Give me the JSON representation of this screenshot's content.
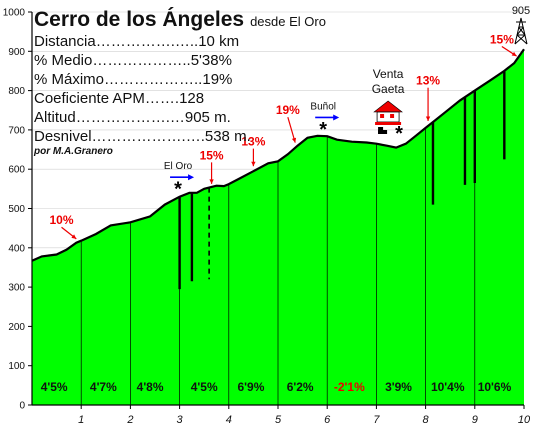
{
  "chart_data": {
    "type": "area",
    "title": "Cerro de los Ángeles",
    "subtitle": "desde El Oro",
    "stats": [
      {
        "label": "Distancia",
        "dots": "…………….…..",
        "value": "10 km"
      },
      {
        "label": "% Medio",
        "dots": "………………..",
        "value": "5'38%"
      },
      {
        "label": "% Máximo",
        "dots": "………………..",
        "value": "19%"
      },
      {
        "label": "Coeficiente APM",
        "dots": "…….",
        "value": "128"
      },
      {
        "label": "Altitud",
        "dots": "……………….…",
        "value": "905 m."
      },
      {
        "label": "Desnivel",
        "dots": "……………….….",
        "value": "538 m."
      }
    ],
    "author": "por M.A.Granero",
    "xlim": [
      0,
      10
    ],
    "ylim": [
      0,
      1000
    ],
    "x_ticks": [
      "1",
      "2",
      "3",
      "4",
      "5",
      "6",
      "7",
      "8",
      "9",
      "10"
    ],
    "y_ticks": [
      "0",
      "100",
      "200",
      "300",
      "400",
      "500",
      "600",
      "700",
      "800",
      "900",
      "1000"
    ],
    "profile": [
      {
        "x": 0.0,
        "y": 367
      },
      {
        "x": 0.2,
        "y": 378
      },
      {
        "x": 0.5,
        "y": 383
      },
      {
        "x": 0.7,
        "y": 395
      },
      {
        "x": 0.9,
        "y": 413
      },
      {
        "x": 1.0,
        "y": 418
      },
      {
        "x": 1.3,
        "y": 435
      },
      {
        "x": 1.6,
        "y": 457
      },
      {
        "x": 2.0,
        "y": 465
      },
      {
        "x": 2.4,
        "y": 480
      },
      {
        "x": 2.7,
        "y": 510
      },
      {
        "x": 3.0,
        "y": 530
      },
      {
        "x": 3.2,
        "y": 540
      },
      {
        "x": 3.35,
        "y": 540
      },
      {
        "x": 3.5,
        "y": 550
      },
      {
        "x": 3.75,
        "y": 558
      },
      {
        "x": 3.9,
        "y": 557
      },
      {
        "x": 4.0,
        "y": 562
      },
      {
        "x": 4.2,
        "y": 575
      },
      {
        "x": 4.5,
        "y": 595
      },
      {
        "x": 4.8,
        "y": 615
      },
      {
        "x": 5.0,
        "y": 620
      },
      {
        "x": 5.2,
        "y": 638
      },
      {
        "x": 5.4,
        "y": 660
      },
      {
        "x": 5.6,
        "y": 680
      },
      {
        "x": 5.8,
        "y": 685
      },
      {
        "x": 6.0,
        "y": 684
      },
      {
        "x": 6.2,
        "y": 675
      },
      {
        "x": 6.5,
        "y": 670
      },
      {
        "x": 6.8,
        "y": 668
      },
      {
        "x": 7.0,
        "y": 665
      },
      {
        "x": 7.2,
        "y": 660
      },
      {
        "x": 7.4,
        "y": 655
      },
      {
        "x": 7.6,
        "y": 665
      },
      {
        "x": 7.8,
        "y": 685
      },
      {
        "x": 8.0,
        "y": 705
      },
      {
        "x": 8.2,
        "y": 725
      },
      {
        "x": 8.4,
        "y": 745
      },
      {
        "x": 8.7,
        "y": 775
      },
      {
        "x": 9.0,
        "y": 800
      },
      {
        "x": 9.3,
        "y": 825
      },
      {
        "x": 9.6,
        "y": 850
      },
      {
        "x": 9.8,
        "y": 870
      },
      {
        "x": 10.0,
        "y": 905
      }
    ],
    "segments": [
      {
        "x_mid": 0.45,
        "grade": "4'5%"
      },
      {
        "x_mid": 1.45,
        "grade": "4'7%"
      },
      {
        "x_mid": 2.4,
        "grade": "4'8%"
      },
      {
        "x_mid": 3.5,
        "grade": "4'5%"
      },
      {
        "x_mid": 4.45,
        "grade": "6'9%"
      },
      {
        "x_mid": 5.45,
        "grade": "6'2%"
      },
      {
        "x_mid": 6.45,
        "grade": "-2'1%"
      },
      {
        "x_mid": 7.45,
        "grade": "3'9%"
      },
      {
        "x_mid": 8.45,
        "grade": "10'4%"
      },
      {
        "x_mid": 9.4,
        "grade": "10'6%"
      }
    ],
    "km_markers": [
      1,
      2,
      3,
      4,
      5,
      6,
      7,
      8,
      9
    ],
    "dark_lines": [
      {
        "x": 3.0,
        "y_bottom": 295
      },
      {
        "x": 3.25,
        "y_bottom": 315
      },
      {
        "x": 8.15,
        "y_bottom": 510
      },
      {
        "x": 8.8,
        "y_bottom": 560
      },
      {
        "x": 9.0,
        "y_bottom": 565
      },
      {
        "x": 9.6,
        "y_bottom": 625
      }
    ],
    "dashed_lines": [
      {
        "x": 3.6,
        "y_bottom": 320
      }
    ],
    "max_grades": [
      {
        "x": 0.6,
        "y": 460,
        "label": "10%",
        "arrow_to_x": 0.9,
        "arrow_to_y": 415
      },
      {
        "x": 3.65,
        "y": 625,
        "label": "15%",
        "arrow_to_x": 3.65,
        "arrow_to_y": 555
      },
      {
        "x": 4.5,
        "y": 660,
        "label": "13%",
        "arrow_to_x": 4.5,
        "arrow_to_y": 600
      },
      {
        "x": 5.2,
        "y": 740,
        "label": "19%",
        "arrow_to_x": 5.35,
        "arrow_to_y": 660
      },
      {
        "x": 8.05,
        "y": 815,
        "label": "13%",
        "arrow_to_x": 8.05,
        "arrow_to_y": 715
      },
      {
        "x": 9.55,
        "y": 920,
        "label": "15%",
        "arrow_to_x": 9.85,
        "arrow_to_y": 880
      }
    ],
    "places": [
      {
        "x": 3.05,
        "y": 600,
        "label": "El Oro",
        "arrow": true
      },
      {
        "x": 6.0,
        "y": 752,
        "label": "Buñol",
        "arrow": true
      }
    ],
    "venta": {
      "x": 7.4,
      "label_line1": "Venta",
      "label_line2": "Gaeta"
    },
    "summit_label": "905",
    "colors": {
      "fill": "#00ff00",
      "outline": "#000000",
      "grade_label": "#ee0000",
      "segment_label": "#111111",
      "negative_segment_label": "#ee0000",
      "place_arrow": "#0000ff",
      "house": "#ee0000"
    }
  }
}
